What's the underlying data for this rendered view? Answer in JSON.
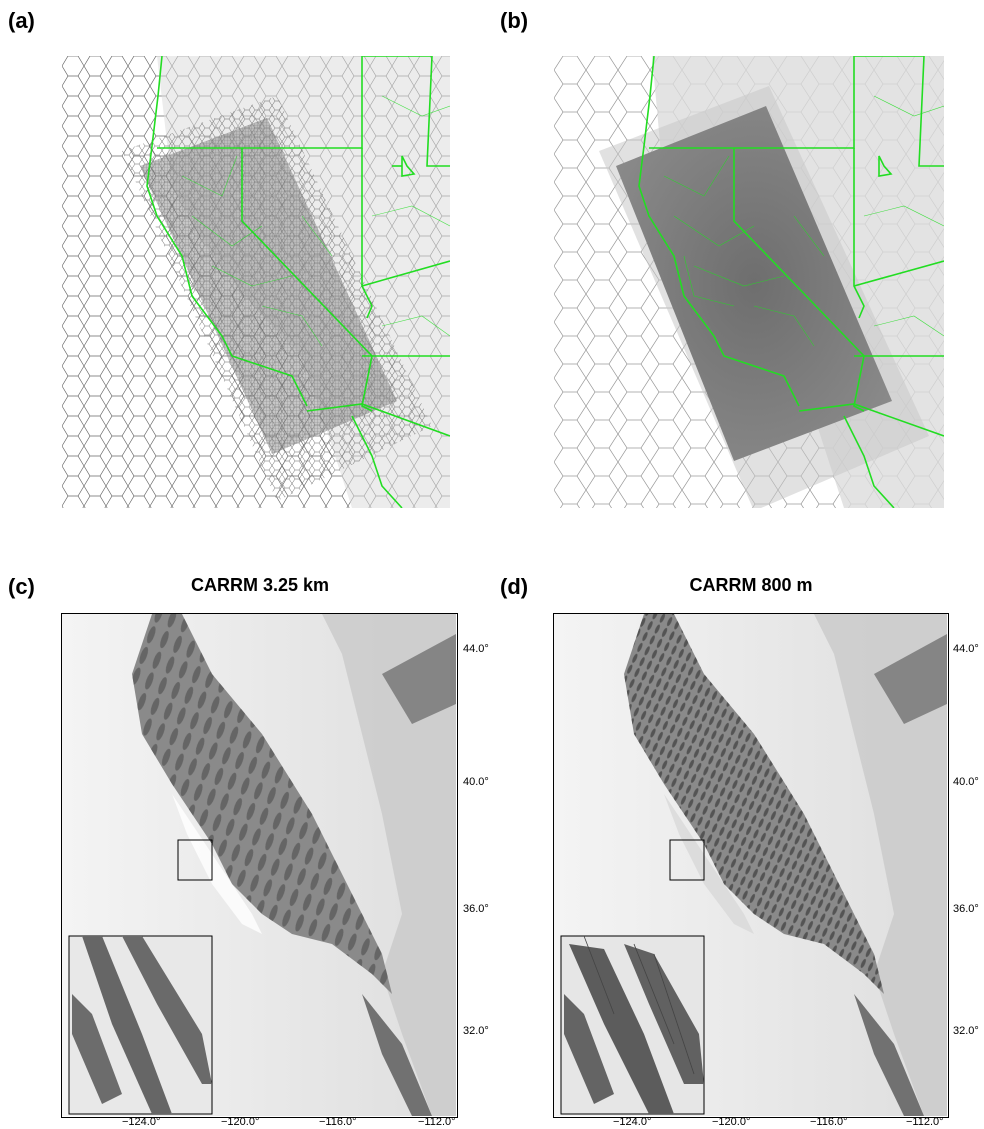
{
  "panels": {
    "a": {
      "letter": "(a)"
    },
    "b": {
      "letter": "(b)"
    },
    "c": {
      "letter": "(c)",
      "title": "CARRM 3.25 km"
    },
    "d": {
      "letter": "(d)",
      "title": "CARRM 800 m"
    }
  },
  "axes": {
    "lon_ticks": [
      "−124.0°",
      "−120.0°",
      "−116.0°",
      "−112.0°"
    ],
    "lat_ticks": [
      "44.0°",
      "40.0°",
      "36.0°",
      "32.0°"
    ]
  },
  "colors": {
    "mesh_line": "#555555",
    "boundary": "#22dd22",
    "refined_fill": "#7a7a7a",
    "land_fill": "#d9d9d9",
    "terrain_dark": "#5a5a5a"
  }
}
